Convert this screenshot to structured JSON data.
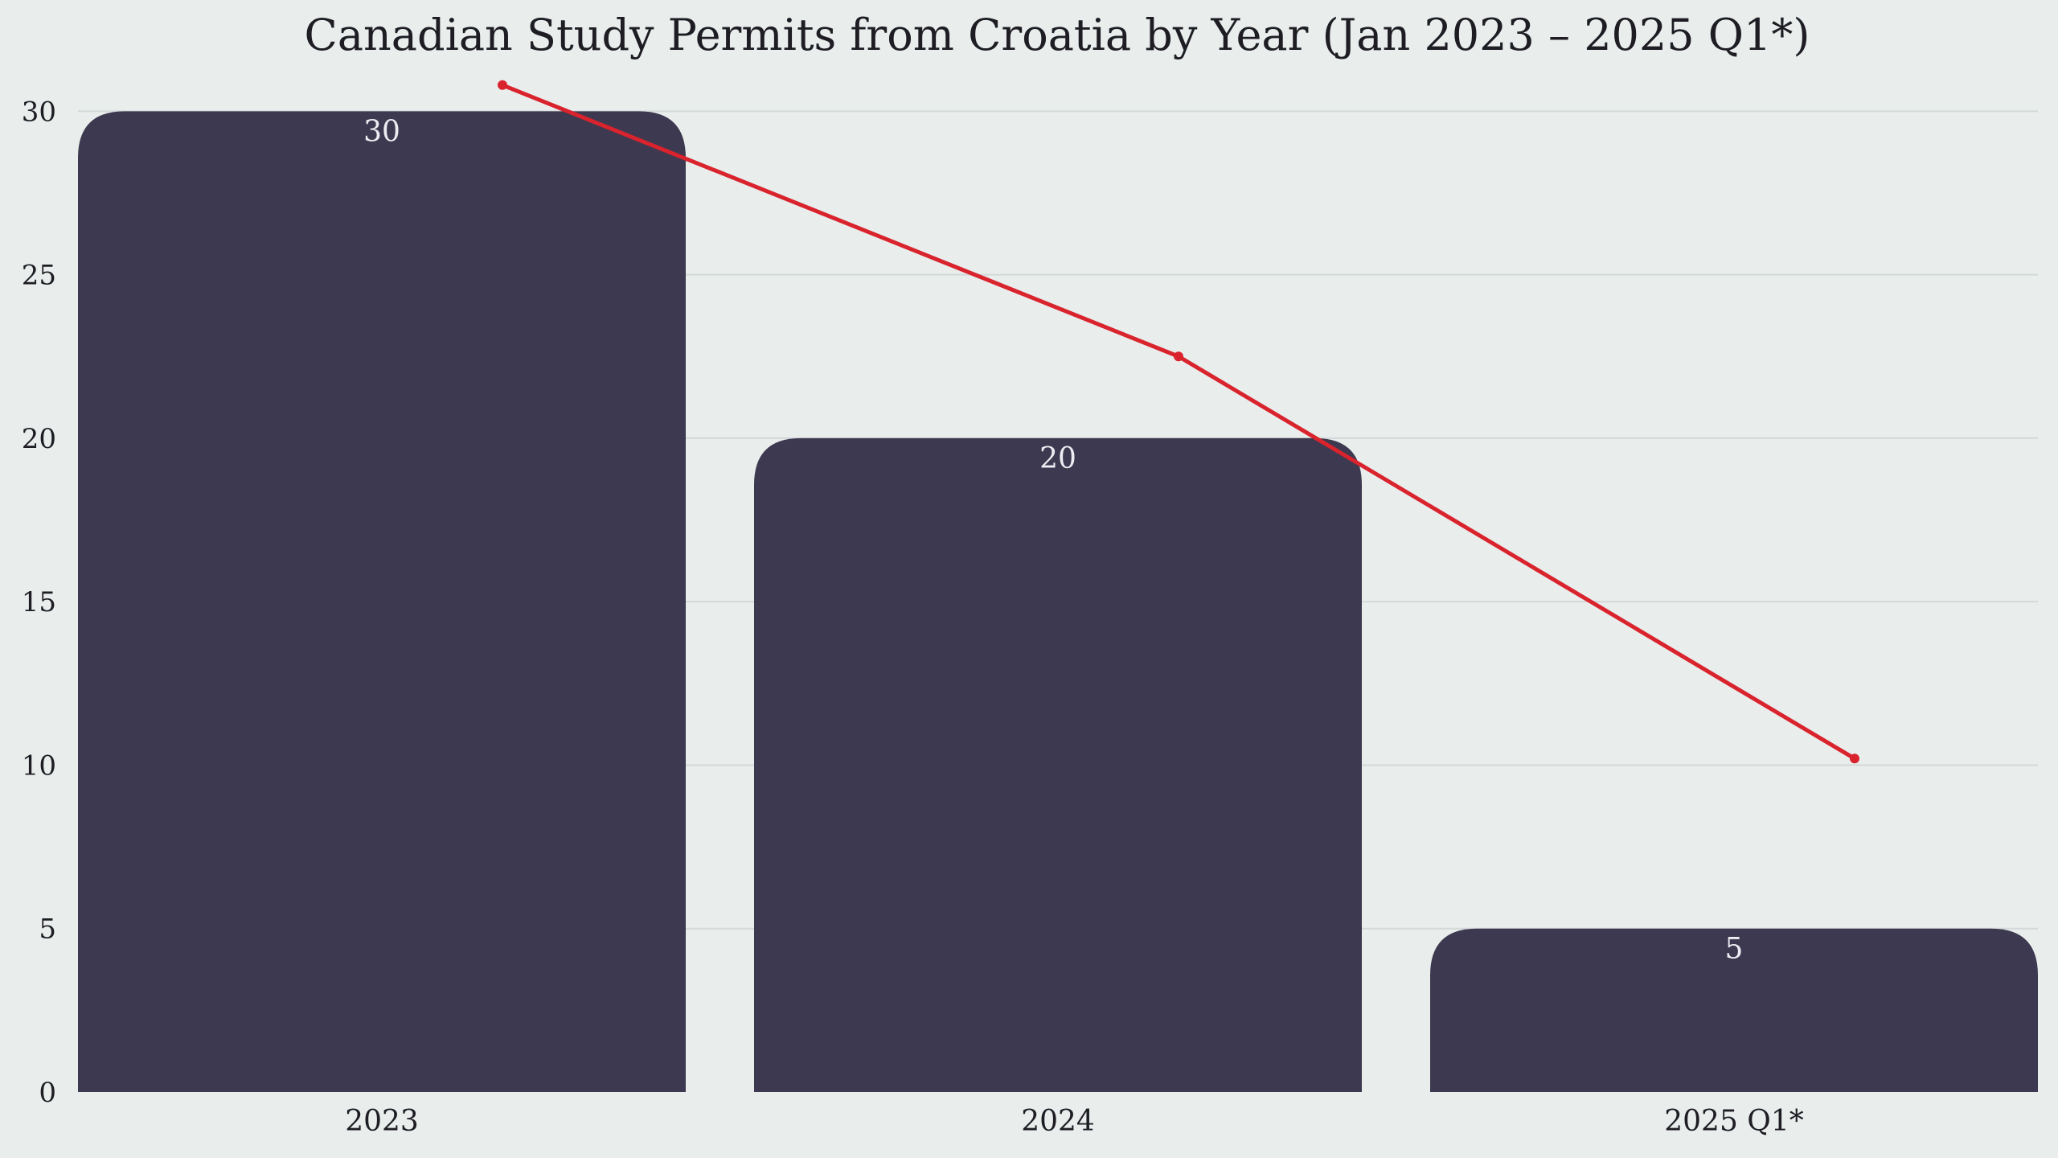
{
  "chart_data": {
    "type": "bar",
    "title": "Canadian Study Permits from Croatia by Year (Jan 2023 – 2025 Q1*)",
    "categories": [
      "2023",
      "2024",
      "2025 Q1*"
    ],
    "values": [
      30,
      20,
      5
    ],
    "data_labels": [
      "30",
      "20",
      "5"
    ],
    "trend_line": {
      "values": [
        30.8,
        22.5,
        10.2
      ]
    },
    "ylim": [
      0,
      30.5
    ],
    "yticks": [
      0,
      5,
      10,
      15,
      20,
      25,
      30
    ],
    "ytick_labels": [
      "0",
      "5",
      "10",
      "15",
      "20",
      "25",
      "30"
    ],
    "xlabel": "",
    "ylabel": "",
    "grid": true,
    "colors": {
      "bar": "#3d3950",
      "trend": "#d9232d",
      "background": "#e9edec",
      "label": "#ececf2"
    }
  }
}
